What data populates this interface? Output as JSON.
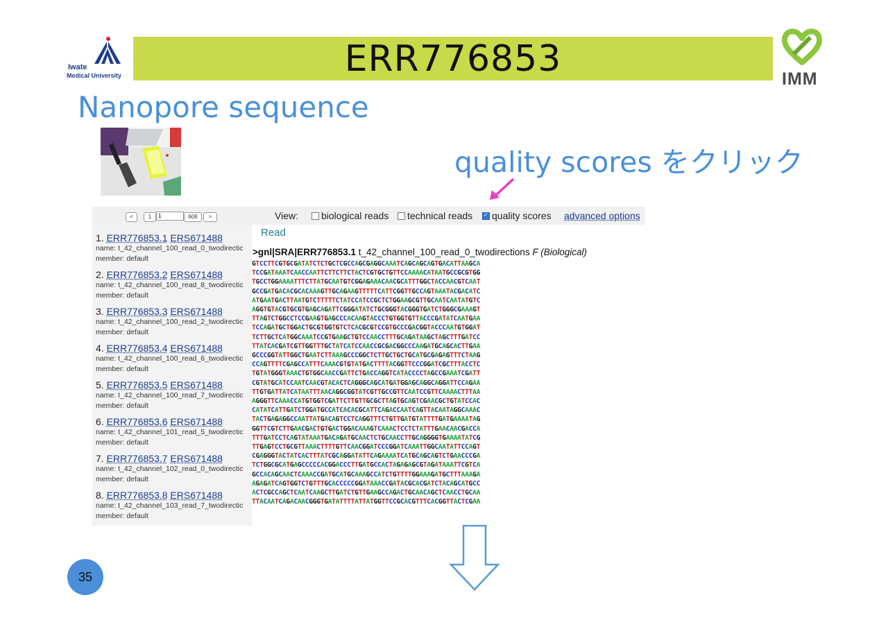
{
  "slide": {
    "title": "ERR776853",
    "subtitle": "Nanopore sequence",
    "annotation": "quality scores をクリック",
    "page_number": "35",
    "left_logo": {
      "line1": "Iwate",
      "line2": "Medical University"
    },
    "right_logo": {
      "text": "IMM"
    }
  },
  "colors": {
    "title_bar": "#c8d94a",
    "accent_blue": "#4a90d9",
    "pink_arrow": "#e83ec4",
    "A": "#1c9e3a",
    "C": "#2136c2",
    "G": "#1a1a1a",
    "T": "#d11f1f"
  },
  "toolbar": {
    "page_first": "<",
    "page_one": "1",
    "page_input": "1",
    "page_total": "606",
    "page_next": ">",
    "view_label": "View:",
    "opt_biological": "biological reads",
    "opt_technical": "technical reads",
    "opt_quality": "quality scores",
    "advanced": "advanced options"
  },
  "reads": [
    {
      "num": "1.",
      "run": "ERR776853.1",
      "sample": "ERS671488",
      "name": "name: t_42_channel_100_read_0_twodirectic",
      "member": "member:  default"
    },
    {
      "num": "2.",
      "run": "ERR776853.2",
      "sample": "ERS671488",
      "name": "name: t_42_channel_100_read_8_twodirectic",
      "member": "member:  default"
    },
    {
      "num": "3.",
      "run": "ERR776853.3",
      "sample": "ERS671488",
      "name": "name: t_42_channel_100_read_2_twodirectic",
      "member": "member:  default"
    },
    {
      "num": "4.",
      "run": "ERR776853.4",
      "sample": "ERS671488",
      "name": "name: t_42_channel_100_read_6_twodirectic",
      "member": "member:  default"
    },
    {
      "num": "5.",
      "run": "ERR776853.5",
      "sample": "ERS671488",
      "name": "name: t_42_channel_100_read_7_twodirectic",
      "member": "member:  default"
    },
    {
      "num": "6.",
      "run": "ERR776853.6",
      "sample": "ERS671488",
      "name": "name: t_42_channel_101_read_5_twodirectic",
      "member": "member:  default"
    },
    {
      "num": "7.",
      "run": "ERR776853.7",
      "sample": "ERS671488",
      "name": "name: t_42_channel_102_read_0_twodirectic",
      "member": "member:  default"
    },
    {
      "num": "8.",
      "run": "ERR776853.8",
      "sample": "ERS671488",
      "name": "name: t_42_channel_103_read_7_twodirectic",
      "member": "member:  default"
    }
  ],
  "detail": {
    "section_label": "Read",
    "defline_id": ">gnl|SRA|ERR776853.1",
    "defline_name": " t_42_channel_100_read_0_twodirections ",
    "defline_type": "F (Biological)",
    "sequence_lines": [
      "GTCCTTCGTGCGATATCTCTGCTCGCCAGCGAGGCAAATCAGCAGCAGTGACATTAAGCA",
      "TCCGATAAATCAACCAATTCTTCTTCTACTCGTGCTGTTCCAAAACATAATGCCGCGTGG",
      "TGCCTGGAAAATTTCTTATGCAATGTCGGAGAAACAACGCATTTGGCTACCAACGTCAAT",
      "GCCGATGACACGCACAAAGTTGCAGAAGTTTTTCATTCGGTTGCCAGTAAATACGACATC",
      "ATGAATGACTTAATGTCTTTTTCTATCCATCCGCTCTGGAAGCGTTGCAATCAATATGTC",
      "AGGTGTACGTGCGTGAGCAGATTCGGGATATCTGCGGGTACGGGTGATCTGGGCGAAAGT",
      "TTAGTCTGGCCTCCGAAGTGAGCCCACAAGTACCCTGTGGTGTTACCCGATATCAATGAA",
      "TCCAGATGCTGGACTGCGTGGTGTCTCACGCGTCCGTGCCCGACGGTACCCAATGTGGAT",
      "TCTTGCTCATGGCAAATCCGTGAAGCTGTCCAACCTTTGCAGATAAGCTAGCTTTGATCC",
      "TTATCACGATCGTTGGTTTGCTATCATCCAACCGCGACGGCCCAAGATGCAGCACTTGAA",
      "GCCCGGTATTGGCTGAATCTTAAAGCCCGGCTCTTGCTGCTGCATGCGAGAGTTTCTAAG",
      "CCAGTTTTCGAGCCATTTCAAACGTGTATGACTTTTACGGTTCCCGGATCGCTTTACCTC",
      "TGTATGGGTAAACTGTGGCAACCGATTCTGACCAGGTCATACCCCTAGCCGAAATCGATT",
      "CGTATGCATCCAATCAACGTACACTCAGGGCAGCATGATGGAGCAGGCAGGATTCCAGAA",
      "TTGTGATTATCATAATTTAACAGGCGGTATCGTTGCCGTTCAATCCGTTCAAAACTTTAA",
      "AGGGTTCAAACCATGTGGTCGATTCTTGTTGCGCTTAGTGCAGTCGAACGCTGTATCCAC",
      "CATATCATTGATCTGGATGCCATCACACGCATTCAGACCAATCAGTTACAATAGGCAAAC",
      "TACTGAGAGGCCAATTATGACAGTCCTCAGGTTTCTGTTGATGTATTTTGATGAAAATAG",
      "GGTTCGTCTTGAACGACTGTGACTGGACAAAGTCAAACTCCTCTATTTGAACAACGACCA",
      "TTTGATCCTCAGTATAAATGACAGATGCAACTCTGCAACCTTGCAGGGGTGAAAATATCG",
      "TTGAGTCCTGCGTTAAACTTTTGTTCAACGGATCCCGGATCAAATTGGCAATATTCCAGT",
      "CGAGGGTACTATCACTTTATCGCAGGATATTCAGAAAATCATGCAGCAGTCTGAACCCGA",
      "TCTGGCGCATGAGCCCCCACGGACCCTTGATGCCACTAGAGAGCGTAGATAAATTCGTCA",
      "GCCACAGCAACTCAAACCGATGCATGCAAAGCCATCTGTTTTGGAAAGATGCTTTAAAGA",
      "AGAGATCAGTGGTCTGTTTGCACCCCCGGATAAACCGATACGCACGATCTACAGCATGCC",
      "ACTCGCCAGCTCAATCAAGCTTGATCTGTTGAAGCCAGACTGCAACAGCTCAACCTGCAA",
      "TTACAATCAGACAACGGGTGATATTTTATTATGGTTCCGCACGTTTCACGGTTACTCGAA"
    ]
  }
}
